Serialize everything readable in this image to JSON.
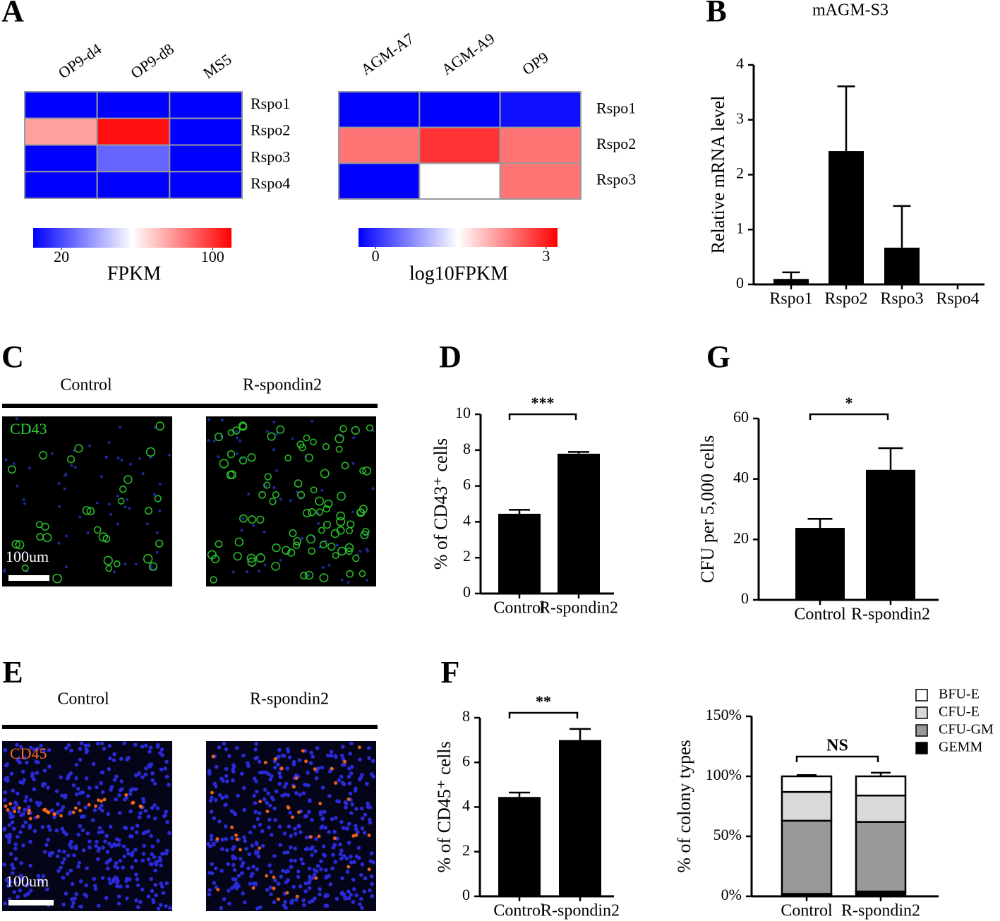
{
  "chart_data": [
    {
      "type": "heatmap",
      "panel": "A",
      "x_categories": [
        "OP9-d4",
        "OP9-d8",
        "MS5"
      ],
      "y_categories": [
        "Rspo1",
        "Rspo2",
        "Rspo3",
        "Rspo4"
      ],
      "values": [
        [
          5,
          5,
          5
        ],
        [
          77,
          107,
          5
        ],
        [
          5,
          26,
          5
        ],
        [
          5,
          5,
          5
        ]
      ],
      "colors": [
        "#0000ff",
        "#ffffff",
        "#ff0000"
      ],
      "colorbar_label": "FPKM",
      "clim": [
        5,
        110
      ],
      "cticks": [
        20,
        100
      ]
    },
    {
      "type": "heatmap",
      "x_categories": [
        "AGM-A7",
        "AGM-A9",
        "OP9"
      ],
      "y_categories": [
        "Rspo1",
        "Rspo2",
        "Rspo3"
      ],
      "values": [
        [
          -0.3,
          -0.3,
          -0.2
        ],
        [
          2.4,
          2.85,
          2.4
        ],
        [
          -0.3,
          1.45,
          2.4
        ]
      ],
      "colors": [
        "#0000ff",
        "#ffffff",
        "#ff0000"
      ],
      "colorbar_label": "log10FPKM",
      "clim": [
        -0.3,
        3.2
      ],
      "cticks": [
        0,
        3
      ]
    },
    {
      "type": "bar",
      "panel": "B",
      "title": "mAGM-S3",
      "categories": [
        "Rspo1",
        "Rspo2",
        "Rspo3",
        "Rspo4"
      ],
      "values": [
        0.1,
        2.43,
        0.67,
        0
      ],
      "errors": [
        0.12,
        1.18,
        0.76,
        0
      ],
      "color": "#000000",
      "ylabel": "Relative mRNA level",
      "ylim": [
        0,
        4
      ],
      "yticks": [
        0,
        1,
        2,
        3,
        4
      ]
    },
    {
      "type": "bar",
      "panel": "D",
      "categories": [
        "Control",
        "R-spondin2"
      ],
      "values": [
        4.45,
        7.8
      ],
      "errors": [
        0.22,
        0.1
      ],
      "color": "#000000",
      "ylabel": "% of CD43⁺ cells",
      "ylim": [
        0,
        10
      ],
      "yticks": [
        0,
        2,
        4,
        6,
        8,
        10
      ],
      "significance": "***"
    },
    {
      "type": "bar",
      "panel": "G",
      "categories": [
        "Control",
        "R-spondin2"
      ],
      "values": [
        23.8,
        43
      ],
      "errors": [
        3,
        7.2
      ],
      "color": "#000000",
      "ylabel": "CFU per 5,000 cells",
      "ylim": [
        0,
        60
      ],
      "yticks": [
        0,
        20,
        40,
        60
      ],
      "significance": "*"
    },
    {
      "type": "bar",
      "panel": "F",
      "categories": [
        "Control",
        "R-spondin2"
      ],
      "values": [
        4.45,
        7.0
      ],
      "errors": [
        0.2,
        0.5
      ],
      "color": "#000000",
      "ylabel": "% of CD45⁺ cells",
      "ylim": [
        0,
        8
      ],
      "yticks": [
        0,
        2,
        4,
        6,
        8
      ],
      "significance": "**"
    },
    {
      "type": "stacked_bar",
      "categories": [
        "Control",
        "R-spondin2"
      ],
      "series": [
        {
          "name": "GEMM",
          "color": "#000000",
          "values": [
            2,
            4
          ],
          "errors": [
            2,
            2
          ]
        },
        {
          "name": "CFU-GM",
          "color": "#999999",
          "values": [
            61,
            58
          ],
          "errors": [
            1,
            1
          ]
        },
        {
          "name": "CFU-E",
          "color": "#d9d9d9",
          "values": [
            24,
            22
          ],
          "errors": [
            2,
            2
          ]
        },
        {
          "name": "BFU-E",
          "color": "#ffffff",
          "values": [
            13,
            16
          ],
          "errors": [
            1,
            3
          ]
        }
      ],
      "ylabel": "% of  colony types",
      "ylim": [
        0,
        150
      ],
      "yticks": [
        {
          "value": 0,
          "label": "0%"
        },
        {
          "value": 50,
          "label": "50%"
        },
        {
          "value": 100,
          "label": "100%"
        },
        {
          "value": 150,
          "label": "150%"
        }
      ],
      "significance": "NS"
    }
  ],
  "images": [
    {
      "panel": "C",
      "columns": [
        "Control",
        "R-spondin2"
      ],
      "stain": "CD43",
      "scale_bar": "100um"
    },
    {
      "panel": "E",
      "columns": [
        "Control",
        "R-spondin2"
      ],
      "stain": "CD45",
      "scale_bar": "100um"
    }
  ]
}
